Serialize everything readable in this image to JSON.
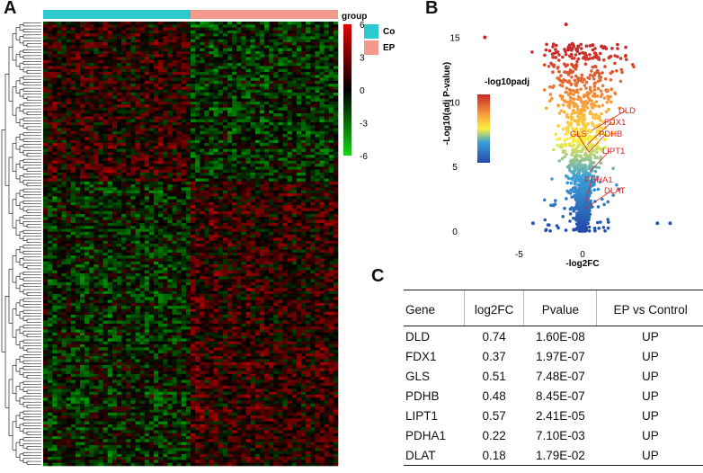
{
  "panels": {
    "a": "A",
    "b": "B",
    "c": "C"
  },
  "colors": {
    "control": "#2ec9cf",
    "ep": "#f29a8c",
    "high": "#e00000",
    "mid": "#000000",
    "low": "#17d417"
  },
  "chart_data": [
    {
      "type": "heatmap",
      "title": "",
      "groups_title": "group",
      "groups": [
        "Control",
        "EP"
      ],
      "colorbar_ticks": [
        6,
        3,
        0,
        -3,
        -6
      ],
      "range": [
        -6,
        6
      ]
    },
    {
      "type": "scatter",
      "title": "",
      "xlabel": "-log2FC",
      "ylabel": "-Log10(adj P-value)",
      "legend_title": "-log10padj",
      "xlim": [
        -8.5,
        8.5
      ],
      "ylim": [
        -0.5,
        16.5
      ],
      "x_ticks": [
        -5,
        0
      ],
      "y_ticks": [
        0,
        5,
        10,
        15
      ],
      "labeled_genes": [
        {
          "name": "DLD",
          "x": 0.74,
          "y": 7.8
        },
        {
          "name": "FDX1",
          "x": 0.37,
          "y": 6.7
        },
        {
          "name": "PDHB",
          "x": 0.48,
          "y": 6.1
        },
        {
          "name": "GLS",
          "x": 0.51,
          "y": 6.1
        },
        {
          "name": "LIPT1",
          "x": 0.57,
          "y": 4.6
        },
        {
          "name": "PDHA1",
          "x": 0.22,
          "y": 2.1
        },
        {
          "name": "DLAT",
          "x": 0.18,
          "y": 1.7
        }
      ]
    },
    {
      "type": "table",
      "columns": [
        "Gene",
        "log2FC",
        "Pvalue",
        "EP vs Control"
      ],
      "rows": [
        [
          "DLD",
          "0.74",
          "1.60E-08",
          "UP"
        ],
        [
          "FDX1",
          "0.37",
          "1.97E-07",
          "UP"
        ],
        [
          "GLS",
          "0.51",
          "7.48E-07",
          "UP"
        ],
        [
          "PDHB",
          "0.48",
          "8.45E-07",
          "UP"
        ],
        [
          "LIPT1",
          "0.57",
          "2.41E-05",
          "UP"
        ],
        [
          "PDHA1",
          "0.22",
          "7.10E-03",
          "UP"
        ],
        [
          "DLAT",
          "0.18",
          "1.79E-02",
          "UP"
        ]
      ]
    }
  ]
}
